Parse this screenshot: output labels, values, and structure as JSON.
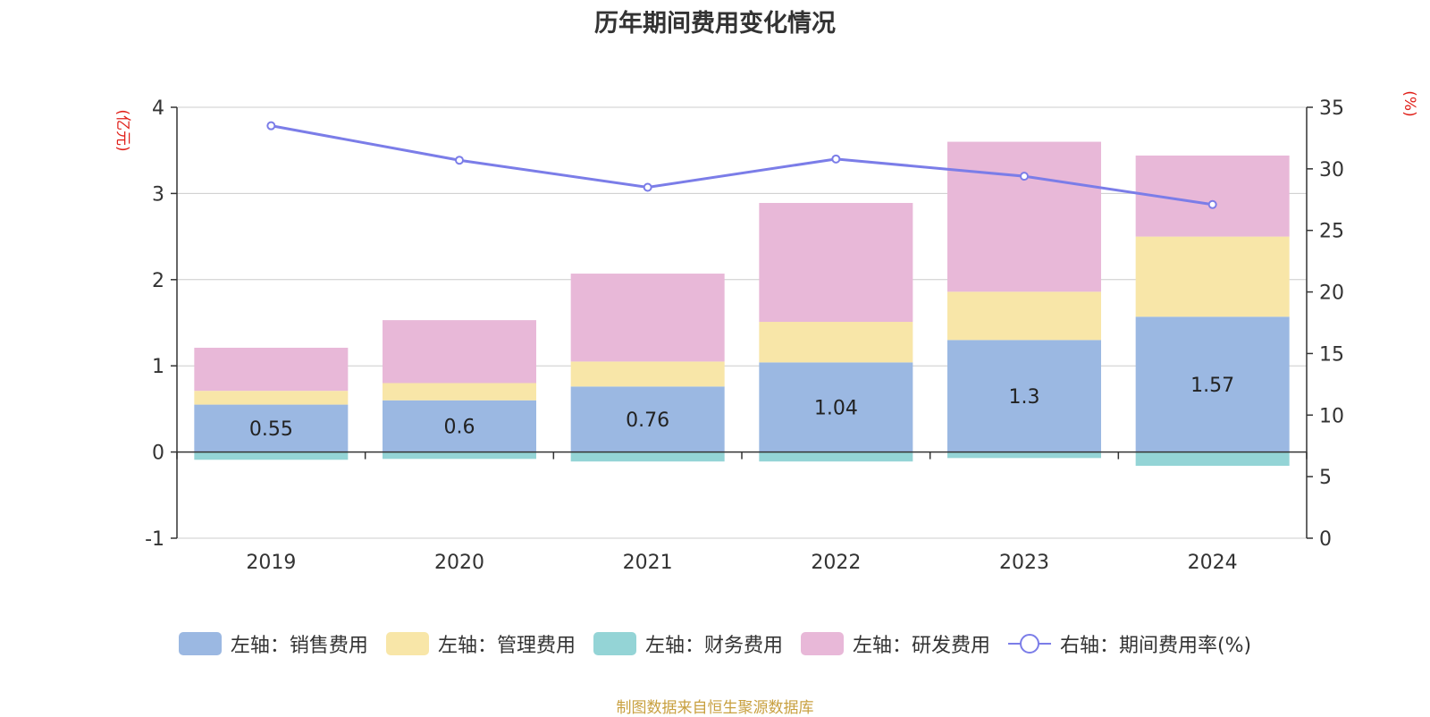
{
  "title": "历年期间费用变化情况",
  "source": "制图数据来自恒生聚源数据库",
  "chart_data": {
    "type": "bar",
    "stacked": true,
    "categories": [
      "2019",
      "2020",
      "2021",
      "2022",
      "2023",
      "2024"
    ],
    "left_axis": {
      "label": "(亿元)",
      "min": -1,
      "max": 4,
      "ticks": [
        -1,
        0,
        1,
        2,
        3,
        4
      ]
    },
    "right_axis": {
      "label": "(%)",
      "min": 0,
      "max": 35,
      "ticks": [
        0,
        5,
        10,
        15,
        20,
        25,
        30,
        35
      ]
    },
    "grid": true,
    "legend_position": "bottom",
    "series": [
      {
        "name": "左轴：销售费用",
        "axis": "left",
        "color": "#9bb8e2",
        "values": [
          0.55,
          0.6,
          0.76,
          1.04,
          1.3,
          1.57
        ],
        "data_labels": [
          "0.55",
          "0.6",
          "0.76",
          "1.04",
          "1.3",
          "1.57"
        ]
      },
      {
        "name": "左轴：管理费用",
        "axis": "left",
        "color": "#f8e6a8",
        "values": [
          0.16,
          0.2,
          0.29,
          0.47,
          0.56,
          0.93
        ]
      },
      {
        "name": "左轴：财务费用",
        "axis": "left",
        "color": "#94d4d6",
        "values": [
          -0.09,
          -0.08,
          -0.11,
          -0.11,
          -0.07,
          -0.16
        ]
      },
      {
        "name": "左轴：研发费用",
        "axis": "left",
        "color": "#e8b8d8",
        "values": [
          0.5,
          0.73,
          1.02,
          1.38,
          1.74,
          0.94
        ]
      },
      {
        "name": "右轴：期间费用率(%)",
        "axis": "right",
        "type": "line",
        "color": "#7b7de8",
        "values": [
          33.5,
          30.7,
          28.5,
          30.8,
          29.4,
          27.1
        ]
      }
    ]
  }
}
